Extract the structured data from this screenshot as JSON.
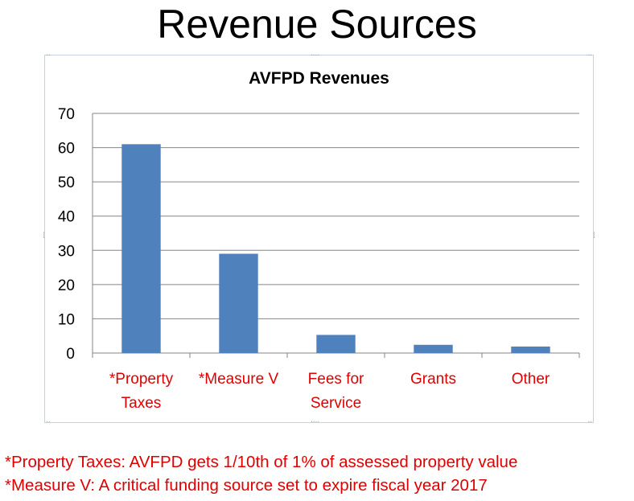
{
  "slide": {
    "title": "Revenue Sources"
  },
  "chart_data": {
    "type": "bar",
    "title": "AVFPD Revenues",
    "categories": [
      [
        "*Property",
        "Taxes"
      ],
      [
        "*Measure V"
      ],
      [
        "Fees for",
        "Service"
      ],
      [
        "Grants"
      ],
      [
        "Other"
      ]
    ],
    "values": [
      61,
      29,
      5.3,
      2.4,
      1.9
    ],
    "ylim": [
      0,
      70
    ],
    "yticks": [
      0,
      10,
      20,
      30,
      40,
      50,
      60,
      70
    ],
    "grid": true,
    "legend": "none",
    "colors": {
      "bar": "#4f81bd",
      "category_label": "#e00000",
      "gridline": "#868686"
    }
  },
  "footnotes": [
    "*Property Taxes: AVFPD gets 1/10th of  1% of assessed property value",
    "*Measure V: A critical funding source set to expire fiscal year 2017"
  ]
}
